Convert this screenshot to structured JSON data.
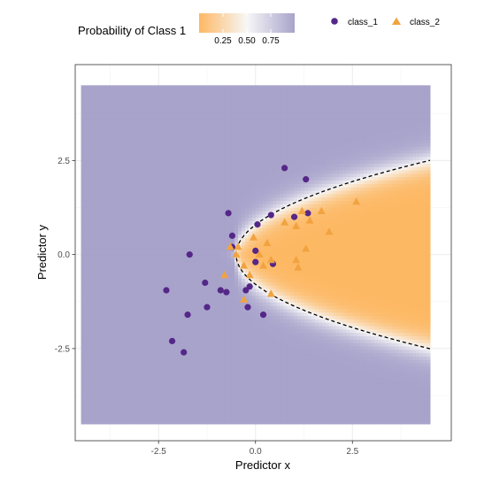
{
  "chart_data": {
    "type": "scatter",
    "subtype": "decision-surface",
    "xlabel": "Predictor x",
    "ylabel": "Predictor y",
    "xlim": [
      -4.65,
      5.05
    ],
    "ylim": [
      -4.95,
      5.05
    ],
    "xticks": [
      -2.5,
      0.0,
      2.5
    ],
    "yticks": [
      -2.5,
      0.0,
      2.5
    ],
    "xtick_labels": [
      "-2.5",
      "0.0",
      "2.5"
    ],
    "ytick_labels": [
      "-2.5",
      "0.0",
      "2.5"
    ],
    "grid": true,
    "fill": {
      "title": "Probability of Class 1",
      "x_range": [
        -4.5,
        4.5
      ],
      "y_range": [
        -4.5,
        4.5
      ],
      "breaks": [
        "0.25",
        "0.50",
        "0.75"
      ],
      "break_values": [
        0.25,
        0.5,
        0.75
      ],
      "colors": {
        "low": "#fdb863",
        "mid": "#f7f7f7",
        "high": "#a8a3cb"
      }
    },
    "boundary": {
      "style": "dashed",
      "color": "#000000",
      "x_vertex": -0.5,
      "k": 1.12
    },
    "legend": {
      "position": "top",
      "entries": [
        "class_1",
        "class_2"
      ]
    },
    "series": [
      {
        "name": "class_1",
        "marker": "circle",
        "color": "#542788",
        "points": [
          [
            -2.3,
            -0.95
          ],
          [
            -2.15,
            -2.3
          ],
          [
            -1.85,
            -2.6
          ],
          [
            -1.75,
            -1.6
          ],
          [
            -1.7,
            0.0
          ],
          [
            -1.3,
            -0.75
          ],
          [
            -1.25,
            -1.4
          ],
          [
            -0.9,
            -0.95
          ],
          [
            -0.75,
            -1.0
          ],
          [
            -0.7,
            1.1
          ],
          [
            -0.6,
            0.5
          ],
          [
            -0.6,
            0.2
          ],
          [
            -0.25,
            -0.95
          ],
          [
            -0.2,
            -1.4
          ],
          [
            -0.15,
            -0.85
          ],
          [
            0.0,
            0.1
          ],
          [
            0.0,
            -0.2
          ],
          [
            0.05,
            0.8
          ],
          [
            0.2,
            -1.6
          ],
          [
            0.4,
            1.05
          ],
          [
            0.45,
            -0.25
          ],
          [
            0.75,
            2.3
          ],
          [
            1.0,
            1.0
          ],
          [
            1.3,
            2.0
          ],
          [
            1.35,
            1.1
          ]
        ]
      },
      {
        "name": "class_2",
        "marker": "triangle",
        "color": "#f1a340",
        "points": [
          [
            -0.8,
            -0.55
          ],
          [
            -0.65,
            0.2
          ],
          [
            -0.5,
            0.0
          ],
          [
            -0.45,
            0.2
          ],
          [
            -0.3,
            -1.2
          ],
          [
            -0.3,
            -0.3
          ],
          [
            -0.15,
            -0.55
          ],
          [
            -0.05,
            0.45
          ],
          [
            0.1,
            0.0
          ],
          [
            0.2,
            -0.3
          ],
          [
            0.3,
            0.3
          ],
          [
            0.4,
            -0.15
          ],
          [
            0.4,
            -1.05
          ],
          [
            0.75,
            0.85
          ],
          [
            1.05,
            0.75
          ],
          [
            1.05,
            -0.15
          ],
          [
            1.1,
            -0.35
          ],
          [
            1.2,
            1.15
          ],
          [
            1.3,
            0.15
          ],
          [
            1.4,
            0.9
          ],
          [
            1.7,
            1.15
          ],
          [
            1.9,
            0.6
          ],
          [
            2.6,
            1.4
          ]
        ]
      }
    ]
  }
}
